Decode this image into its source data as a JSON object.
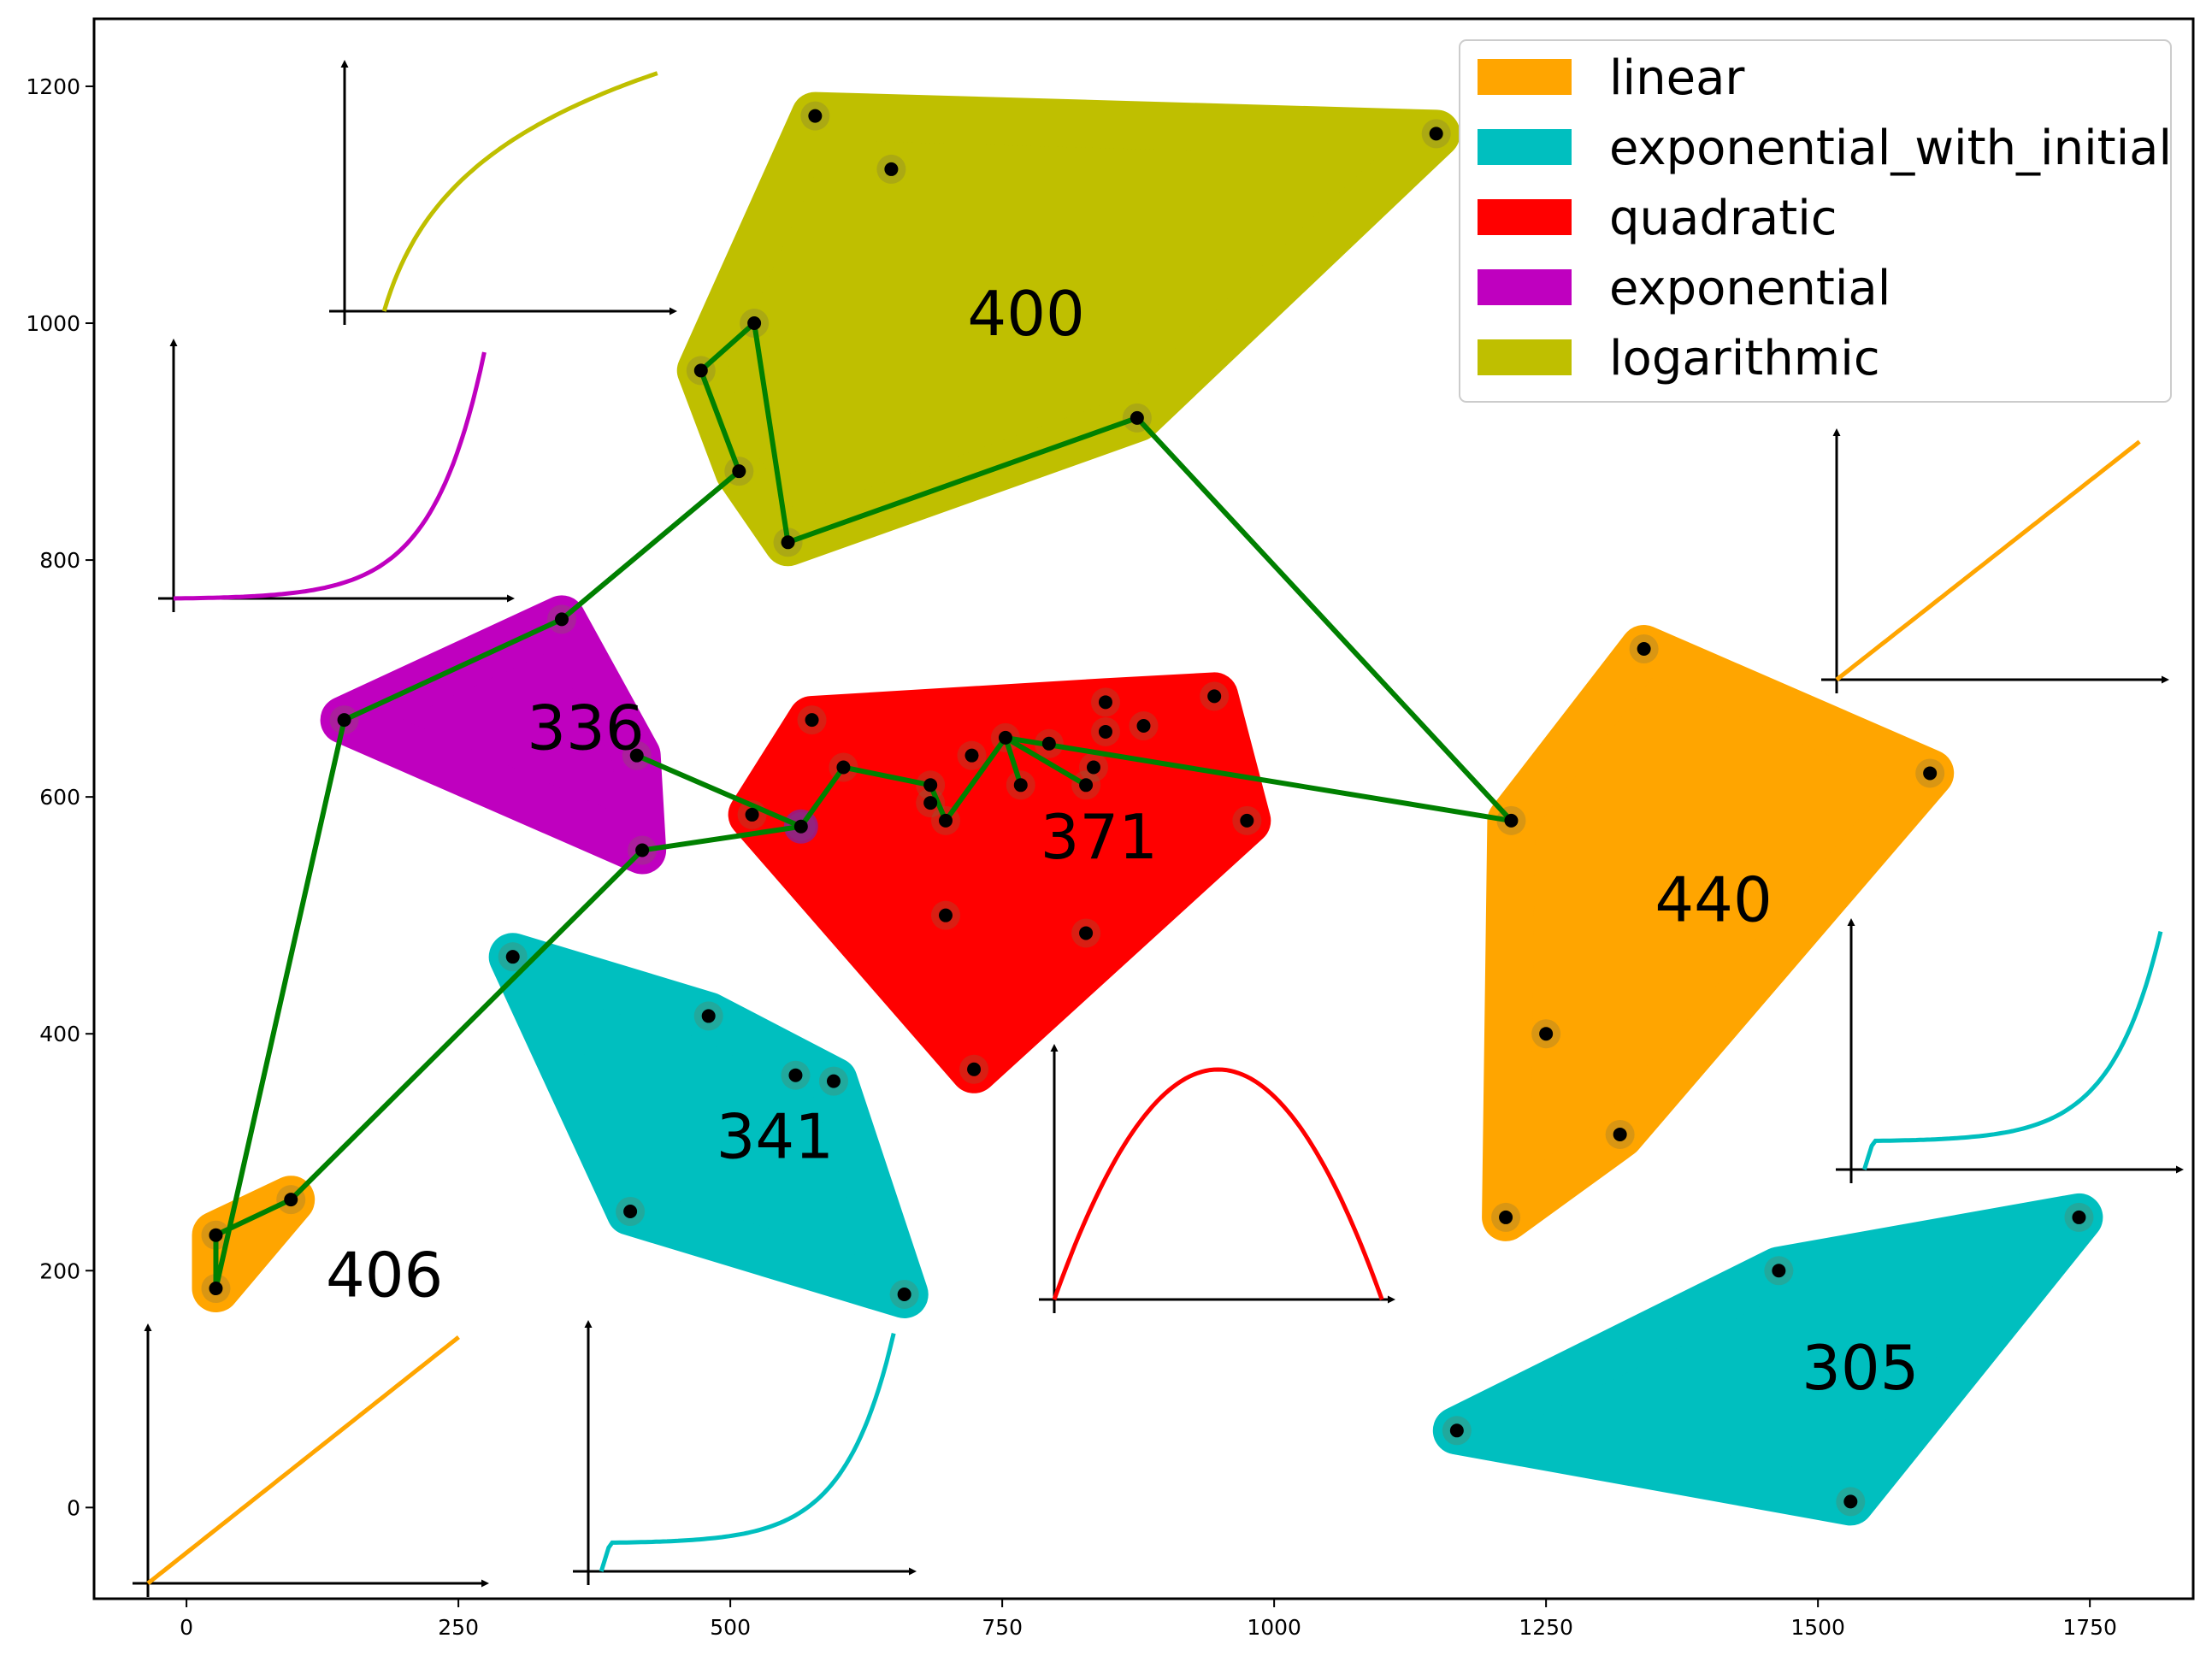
{
  "chart_data": {
    "type": "scatter",
    "xlim": [
      -85,
      1845
    ],
    "ylim": [
      -77,
      1257
    ],
    "x_ticks": [
      0,
      250,
      500,
      750,
      1000,
      1250,
      1500,
      1750
    ],
    "y_ticks": [
      0,
      200,
      400,
      600,
      800,
      1000,
      1200
    ],
    "grid": false,
    "legend": {
      "placement": "top-right",
      "entries": [
        {
          "label": "linear",
          "color": "#FFA500"
        },
        {
          "label": "exponential_with_initial",
          "color": "#00BFBF"
        },
        {
          "label": "quadratic",
          "color": "#FF0000"
        },
        {
          "label": "exponential",
          "color": "#BF00BF"
        },
        {
          "label": "logarithmic",
          "color": "#BFBF00"
        }
      ]
    },
    "clusters": [
      {
        "label": "400",
        "kind": "logarithmic",
        "color": "#BFBF00",
        "label_pos": [
          718,
          990
        ],
        "points": [
          [
            578,
            1175
          ],
          [
            648,
            1130
          ],
          [
            1149,
            1160
          ],
          [
            522,
            1000
          ],
          [
            473,
            960
          ],
          [
            508,
            875
          ],
          [
            874,
            920
          ],
          [
            553,
            815
          ]
        ]
      },
      {
        "label": "336",
        "kind": "exponential",
        "color": "#BF00BF",
        "label_pos": [
          313,
          640
        ],
        "points": [
          [
            345,
            750
          ],
          [
            145,
            665
          ],
          [
            414,
            635
          ],
          [
            419,
            555
          ]
        ]
      },
      {
        "label": "371",
        "kind": "quadratic",
        "color": "#FF0000",
        "label_pos": [
          785,
          548
        ],
        "points": [
          [
            575,
            665
          ],
          [
            604,
            625
          ],
          [
            684,
            610
          ],
          [
            684,
            595
          ],
          [
            698,
            580
          ],
          [
            722,
            635
          ],
          [
            753,
            650
          ],
          [
            767,
            610
          ],
          [
            793,
            645
          ],
          [
            827,
            610
          ],
          [
            834,
            625
          ],
          [
            845,
            680
          ],
          [
            845,
            655
          ],
          [
            880,
            660
          ],
          [
            945,
            685
          ],
          [
            975,
            580
          ],
          [
            520,
            585
          ],
          [
            698,
            500
          ],
          [
            827,
            485
          ],
          [
            724,
            370
          ],
          [
            565,
            575
          ]
        ]
      },
      {
        "label": "440",
        "kind": "linear",
        "color": "#FFA500",
        "label_pos": [
          1350,
          495
        ],
        "points": [
          [
            1340,
            725
          ],
          [
            1603,
            620
          ],
          [
            1218,
            580
          ],
          [
            1250,
            400
          ],
          [
            1318,
            315
          ],
          [
            1213,
            245
          ]
        ]
      },
      {
        "label": "341",
        "kind": "exponential_with_initial",
        "color": "#00BFBF",
        "label_pos": [
          487,
          295
        ],
        "points": [
          [
            300,
            465
          ],
          [
            480,
            415
          ],
          [
            560,
            365
          ],
          [
            595,
            360
          ],
          [
            408,
            250
          ],
          [
            660,
            180
          ]
        ]
      },
      {
        "label": "406",
        "kind": "linear",
        "color": "#FFA500",
        "label_pos": [
          128,
          178
        ],
        "points": [
          [
            27,
            230
          ],
          [
            96,
            260
          ],
          [
            27,
            185
          ]
        ]
      },
      {
        "label": "305",
        "kind": "exponential_with_initial",
        "color": "#00BFBF",
        "label_pos": [
          1485,
          100
        ],
        "points": [
          [
            1464,
            200
          ],
          [
            1740,
            245
          ],
          [
            1168,
            65
          ],
          [
            1530,
            5
          ]
        ]
      }
    ],
    "path": [
      [
        553,
        815
      ],
      [
        522,
        1000
      ],
      [
        473,
        960
      ],
      [
        508,
        875
      ],
      [
        345,
        750
      ],
      [
        145,
        665
      ],
      [
        27,
        185
      ],
      [
        27,
        230
      ],
      [
        96,
        260
      ],
      [
        419,
        555
      ],
      [
        565,
        575
      ],
      [
        414,
        635
      ],
      [
        565,
        575
      ],
      [
        604,
        625
      ],
      [
        684,
        610
      ],
      [
        698,
        580
      ],
      [
        753,
        650
      ],
      [
        767,
        610
      ],
      [
        753,
        650
      ],
      [
        827,
        610
      ],
      [
        753,
        650
      ],
      [
        1218,
        580
      ],
      [
        874,
        920
      ],
      [
        553,
        815
      ]
    ],
    "insets": [
      {
        "kind": "logarithmic",
        "color": "#BFBF00"
      },
      {
        "kind": "exponential",
        "color": "#BF00BF"
      },
      {
        "kind": "linear",
        "color": "#FFA500"
      },
      {
        "kind": "exponential_with_initial",
        "color": "#00BFBF"
      },
      {
        "kind": "quadratic",
        "color": "#FF0000"
      },
      {
        "kind": "linear",
        "color": "#FFA500"
      },
      {
        "kind": "exponential_with_initial",
        "color": "#00BFBF"
      }
    ],
    "path_color": "#008000",
    "point_color": "#000000"
  }
}
